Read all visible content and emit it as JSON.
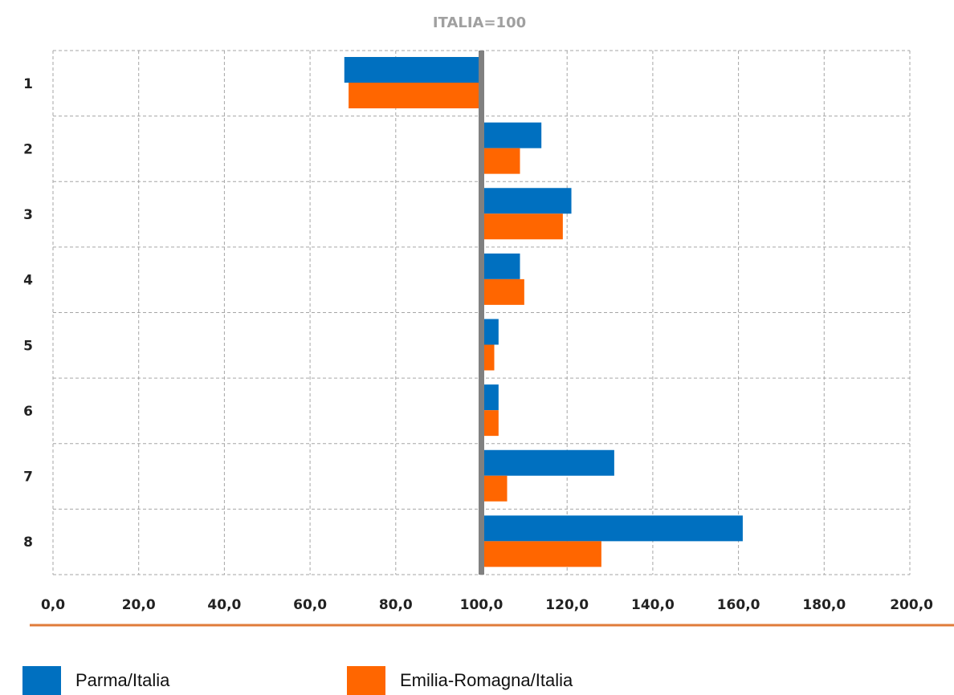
{
  "colors": {
    "series_1": "#0070c0",
    "series_2": "#ff6600",
    "baseline": "#808080",
    "grid": "#a6a6a6",
    "separator": "#e07b39"
  },
  "chart_data": {
    "type": "bar",
    "orientation": "horizontal",
    "title": "ITALIA=100",
    "categories": [
      "1",
      "2",
      "3",
      "4",
      "5",
      "6",
      "7",
      "8"
    ],
    "baseline_value": 100,
    "series": [
      {
        "name": "Parma/Italia",
        "values": [
          68,
          114,
          121,
          109,
          104,
          104,
          131,
          161
        ]
      },
      {
        "name": "Emilia-Romagna/Italia",
        "values": [
          69,
          109,
          119,
          110,
          103,
          104,
          106,
          128
        ]
      }
    ],
    "xlim": [
      0,
      200
    ],
    "x_ticks": [
      "0,0",
      "20,0",
      "40,0",
      "60,0",
      "80,0",
      "100,0",
      "120,0",
      "140,0",
      "160,0",
      "180,0",
      "200,0"
    ],
    "grid": true,
    "grid_style": "dashed",
    "legend_position": "bottom"
  },
  "legend": {
    "items": [
      {
        "label": "Parma/Italia"
      },
      {
        "label": "Emilia-Romagna/Italia"
      }
    ]
  }
}
